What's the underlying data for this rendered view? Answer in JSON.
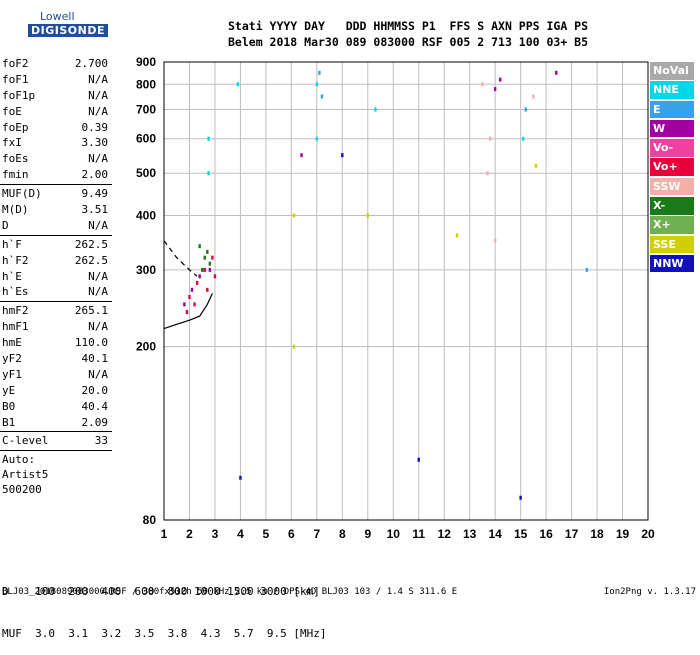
{
  "logo": {
    "line1": "Lowell",
    "line2": "DIGISONDE"
  },
  "header": {
    "line1": "Stati YYYY DAY   DDD HHMMSS P1  FFS S AXN PPS IGA PS",
    "line2": "Belem 2018 Mar30 089 083000 RSF 005 2 713 100 03+ B5"
  },
  "params": {
    "g1": [
      {
        "k": "foF2",
        "v": "2.700"
      },
      {
        "k": "foF1",
        "v": "N/A"
      },
      {
        "k": "foF1p",
        "v": "N/A"
      },
      {
        "k": "foE",
        "v": "N/A"
      },
      {
        "k": "foEp",
        "v": "0.39"
      },
      {
        "k": "fxI",
        "v": "3.30"
      },
      {
        "k": "foEs",
        "v": "N/A"
      },
      {
        "k": "fmin",
        "v": "2.00"
      }
    ],
    "g2": [
      {
        "k": "MUF(D)",
        "v": "9.49"
      },
      {
        "k": "M(D)",
        "v": "3.51"
      },
      {
        "k": "D",
        "v": "N/A"
      }
    ],
    "g3": [
      {
        "k": "h`F",
        "v": "262.5"
      },
      {
        "k": "h`F2",
        "v": "262.5"
      },
      {
        "k": "h`E",
        "v": "N/A"
      },
      {
        "k": "h`Es",
        "v": "N/A"
      }
    ],
    "g4": [
      {
        "k": "hmF2",
        "v": "265.1"
      },
      {
        "k": "hmF1",
        "v": "N/A"
      },
      {
        "k": "hmE",
        "v": "110.0"
      },
      {
        "k": "yF2",
        "v": "40.1"
      },
      {
        "k": "yF1",
        "v": "N/A"
      },
      {
        "k": "yE",
        "v": "20.0"
      },
      {
        "k": "B0",
        "v": "40.4"
      },
      {
        "k": "B1",
        "v": "2.09"
      }
    ],
    "g5": [
      {
        "k": "C-level",
        "v": "33"
      }
    ]
  },
  "auto": {
    "line1": "Auto:",
    "line2": "Artist5",
    "line3": "500200"
  },
  "legend": [
    {
      "label": "NoVal",
      "color": "#a9a9a9"
    },
    {
      "label": "NNE",
      "color": "#00d8e8"
    },
    {
      "label": "E",
      "color": "#3aa0e8"
    },
    {
      "label": "W",
      "color": "#a000a0"
    },
    {
      "label": "Vo-",
      "color": "#f040a0"
    },
    {
      "label": "Vo+",
      "color": "#e8003a"
    },
    {
      "label": "SSW",
      "color": "#f4b0a8"
    },
    {
      "label": "X-",
      "color": "#1a7a1a"
    },
    {
      "label": "X+",
      "color": "#70b050"
    },
    {
      "label": "SSE",
      "color": "#d0d000"
    },
    {
      "label": "NNW",
      "color": "#1010c0"
    }
  ],
  "dmuf": {
    "line1": "D    100  200  400  600  800 1000 1500 3000 [km]",
    "line2": "MUF  3.0  3.1  3.2  3.5  3.8  4.3  5.7  9.5 [MHz]"
  },
  "footer": "BLJ03_2018089083000.RSF / 380fx512h 50 kHz 2.5 km / DPS-4D BLJ03 103 / 1.4 S 311.6 E",
  "version": "Ion2Png v. 1.3.17",
  "chart_data": {
    "type": "scatter",
    "title": "",
    "xlabel": "",
    "ylabel": "",
    "xlim": [
      1,
      20
    ],
    "ylim": [
      80,
      900
    ],
    "x_ticks": [
      1,
      2,
      3,
      4,
      5,
      6,
      7,
      8,
      9,
      10,
      11,
      12,
      13,
      14,
      15,
      16,
      17,
      18,
      19,
      20
    ],
    "y_ticks": [
      80,
      200,
      300,
      400,
      500,
      600,
      700,
      800,
      900
    ],
    "grid": true,
    "y_scale": "log",
    "series": [
      {
        "name": "X-",
        "color": "#1a7a1a",
        "points": [
          [
            2.5,
            300
          ],
          [
            2.6,
            320
          ],
          [
            2.7,
            330
          ],
          [
            2.8,
            310
          ],
          [
            2.4,
            340
          ]
        ]
      },
      {
        "name": "Vo+",
        "color": "#e8003a",
        "points": [
          [
            2.0,
            260
          ],
          [
            2.3,
            280
          ],
          [
            2.6,
            300
          ],
          [
            2.9,
            320
          ],
          [
            2.2,
            250
          ],
          [
            1.9,
            240
          ],
          [
            3.0,
            290
          ],
          [
            2.7,
            270
          ]
        ]
      },
      {
        "name": "W",
        "color": "#a000a0",
        "points": [
          [
            1.8,
            250
          ],
          [
            2.1,
            270
          ],
          [
            2.4,
            290
          ],
          [
            2.8,
            300
          ],
          [
            14.0,
            780
          ],
          [
            14.2,
            820
          ],
          [
            16.4,
            850
          ],
          [
            6.4,
            550
          ]
        ]
      },
      {
        "name": "NNE",
        "color": "#00d8e8",
        "points": [
          [
            2.75,
            500
          ],
          [
            2.75,
            600
          ],
          [
            7.0,
            600
          ],
          [
            7.0,
            800
          ],
          [
            9.3,
            700
          ],
          [
            15.1,
            600
          ],
          [
            3.9,
            800
          ]
        ]
      },
      {
        "name": "SSW",
        "color": "#f4b0a8",
        "points": [
          [
            13.7,
            500
          ],
          [
            13.8,
            600
          ],
          [
            13.5,
            800
          ],
          [
            14.0,
            350
          ],
          [
            15.5,
            750
          ]
        ]
      },
      {
        "name": "SSE",
        "color": "#d0d000",
        "points": [
          [
            6.1,
            400
          ],
          [
            6.1,
            200
          ],
          [
            9.0,
            400
          ],
          [
            15.6,
            520
          ],
          [
            12.5,
            360
          ]
        ]
      },
      {
        "name": "E",
        "color": "#3aa0e8",
        "points": [
          [
            7.1,
            850
          ],
          [
            7.2,
            750
          ],
          [
            15.2,
            700
          ],
          [
            17.6,
            300
          ]
        ]
      },
      {
        "name": "NNW",
        "color": "#1010c0",
        "points": [
          [
            4.0,
            100
          ],
          [
            8.0,
            550
          ],
          [
            15.0,
            90
          ],
          [
            11.0,
            110
          ]
        ]
      }
    ],
    "curves": [
      {
        "name": "profile",
        "style": "dashed",
        "points": [
          [
            1.0,
            350
          ],
          [
            1.5,
            320
          ],
          [
            2.0,
            300
          ],
          [
            2.3,
            290
          ]
        ]
      },
      {
        "name": "profile",
        "style": "solid",
        "points": [
          [
            1.0,
            220
          ],
          [
            1.5,
            225
          ],
          [
            2.0,
            230
          ],
          [
            2.4,
            235
          ],
          [
            2.7,
            250
          ],
          [
            2.9,
            265
          ]
        ]
      }
    ]
  }
}
